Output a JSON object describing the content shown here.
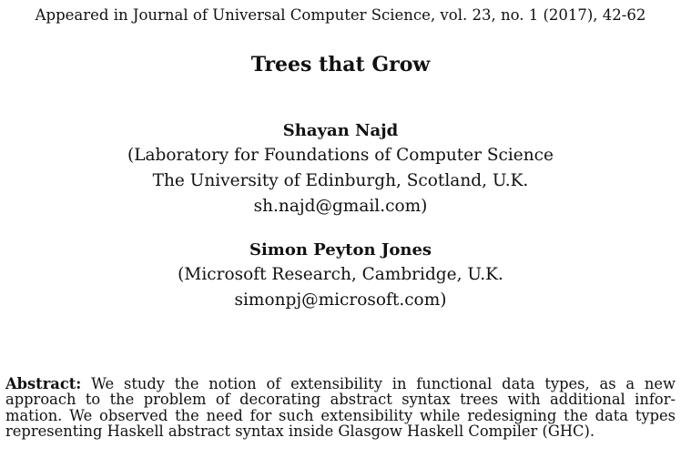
{
  "citation": "Appeared in Journal of Universal Computer Science, vol. 23, no. 1 (2017), 42-62",
  "title": "Trees that Grow",
  "authors": [
    {
      "name": "Shayan Najd",
      "affiliation_lines": [
        "(Laboratory for Foundations of Computer Science",
        "The University of Edinburgh, Scotland, U.K.",
        "sh.najd@gmail.com)"
      ]
    },
    {
      "name": "Simon Peyton Jones",
      "affiliation_lines": [
        "(Microsoft Research, Cambridge, U.K.",
        "simonpj@microsoft.com)"
      ]
    }
  ],
  "abstract": {
    "label": "Abstract:",
    "lines": [
      "We study the notion of extensibility in functional data types, as a new",
      "approach to the problem of decorating abstract syntax trees with additional infor-",
      "mation. We observed the need for such extensibility while redesigning the data types",
      "representing Haskell abstract syntax inside Glasgow Haskell Compiler (GHC)."
    ]
  }
}
